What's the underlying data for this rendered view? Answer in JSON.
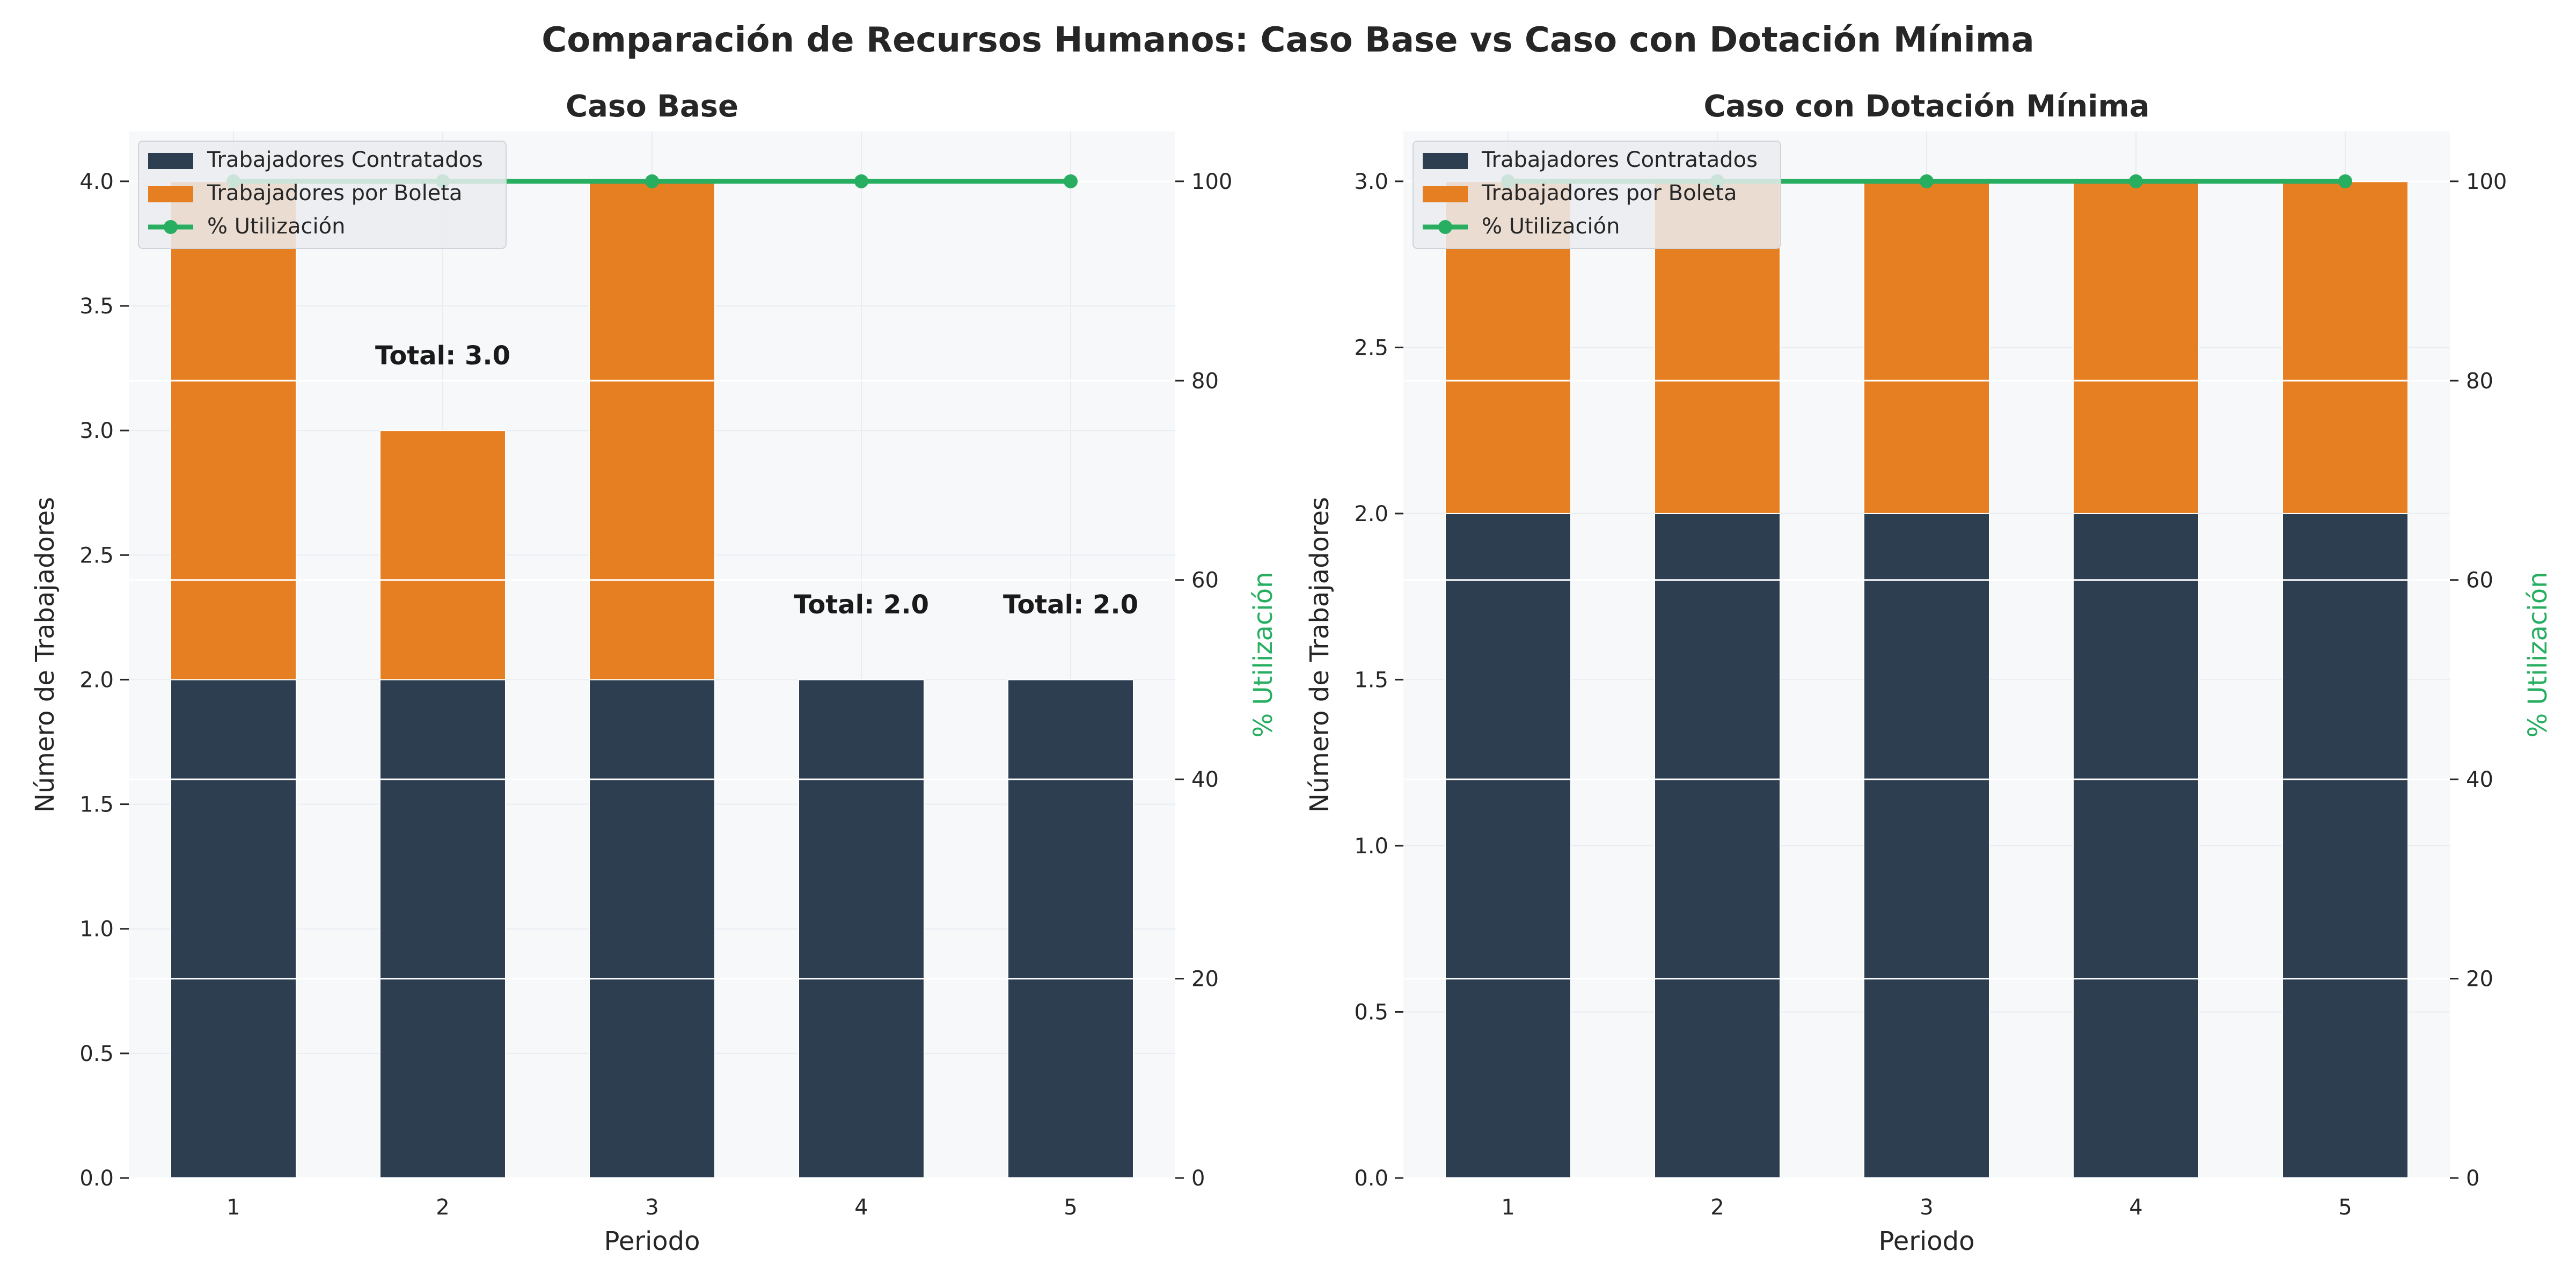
{
  "suptitle": "Comparación de Recursos Humanos: Caso Base vs Caso con Dotación Mínima",
  "colors": {
    "contratados": "#2c3e50",
    "boleta": "#e67e22",
    "utilizacion": "#27ae60",
    "plot_bg": "#f6f8fa",
    "grid": "#ffffff"
  },
  "chart_data": [
    {
      "type": "bar",
      "stacked": true,
      "title": "Caso Base",
      "xlabel": "Periodo",
      "ylabel": "Número de Trabajadores",
      "y2label": "% Utilización",
      "categories": [
        "1",
        "2",
        "3",
        "4",
        "5"
      ],
      "ylim": [
        0,
        4.2
      ],
      "yticks": [
        "0.0",
        "0.5",
        "1.0",
        "1.5",
        "2.0",
        "2.5",
        "3.0",
        "3.5",
        "4.0"
      ],
      "y2lim": [
        0,
        105
      ],
      "y2ticks": [
        "0",
        "20",
        "40",
        "60",
        "80",
        "100"
      ],
      "grid": true,
      "legend_position": "upper-left",
      "series": [
        {
          "name": "Trabajadores Contratados",
          "kind": "bar",
          "values": [
            2,
            2,
            2,
            2,
            2
          ]
        },
        {
          "name": "Trabajadores por Boleta",
          "kind": "bar",
          "values": [
            2,
            1,
            2,
            0,
            0
          ]
        },
        {
          "name": "% Utilización",
          "kind": "line",
          "axis": "right",
          "values": [
            100,
            100,
            100,
            100,
            100
          ]
        }
      ],
      "annotations": [
        {
          "category": "2",
          "y": 3.3,
          "text": "Total: 3.0"
        },
        {
          "category": "4",
          "y": 2.3,
          "text": "Total: 2.0"
        },
        {
          "category": "5",
          "y": 2.3,
          "text": "Total: 2.0"
        }
      ]
    },
    {
      "type": "bar",
      "stacked": true,
      "title": "Caso con Dotación Mínima",
      "xlabel": "Periodo",
      "ylabel": "Número de Trabajadores",
      "y2label": "% Utilización",
      "categories": [
        "1",
        "2",
        "3",
        "4",
        "5"
      ],
      "ylim": [
        0,
        3.15
      ],
      "yticks": [
        "0.0",
        "0.5",
        "1.0",
        "1.5",
        "2.0",
        "2.5",
        "3.0"
      ],
      "y2lim": [
        0,
        105
      ],
      "y2ticks": [
        "0",
        "20",
        "40",
        "60",
        "80",
        "100"
      ],
      "grid": true,
      "legend_position": "upper-left",
      "series": [
        {
          "name": "Trabajadores Contratados",
          "kind": "bar",
          "values": [
            2,
            2,
            2,
            2,
            2
          ]
        },
        {
          "name": "Trabajadores por Boleta",
          "kind": "bar",
          "values": [
            1,
            1,
            1,
            1,
            1
          ]
        },
        {
          "name": "% Utilización",
          "kind": "line",
          "axis": "right",
          "values": [
            100,
            100,
            100,
            100,
            100
          ]
        }
      ],
      "annotations": []
    }
  ]
}
